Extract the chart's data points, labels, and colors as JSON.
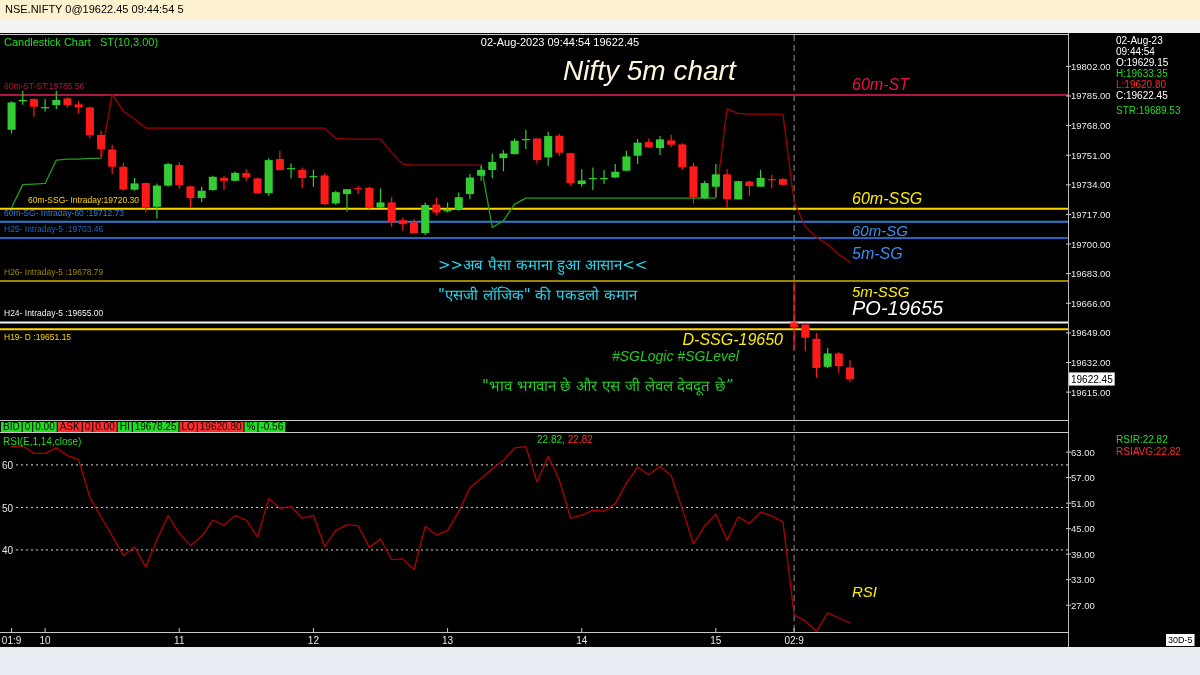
{
  "chart_data": [
    {
      "type": "candlestick",
      "title": "Nifty 5m chart",
      "categories": [
        null,
        null,
        null,
        null,
        null,
        null,
        null,
        null,
        null,
        null,
        null,
        null,
        null,
        null,
        null,
        null,
        null,
        null,
        null,
        null,
        null,
        null,
        null,
        null,
        null,
        null,
        null,
        null,
        null,
        null,
        null,
        null,
        null,
        null,
        null,
        null,
        null,
        null,
        null,
        null,
        null,
        null,
        null,
        null,
        null,
        null,
        null,
        null,
        null,
        null,
        null,
        null,
        null,
        null,
        null,
        null,
        null,
        null,
        null,
        null,
        null,
        null,
        null,
        null,
        null,
        null,
        null,
        null,
        null,
        null,
        null,
        null,
        null,
        null,
        null,
        null,
        null,
        null,
        null,
        null,
        null,
        null,
        null,
        null,
        null,
        null,
        null,
        null,
        null,
        null,
        null,
        null,
        null,
        null,
        null
      ],
      "ohlc": [
        [
          19765.6,
          19781.9,
          19763.5,
          19781.3
        ],
        [
          19781.9,
          19788.0,
          19780.0,
          19782.7
        ],
        [
          19783.2,
          19783.5,
          19773.1,
          19778.8
        ],
        [
          19778.3,
          19783.2,
          19776.0,
          19778.6
        ],
        [
          19779.8,
          19788.0,
          19777.5,
          19782.7
        ],
        [
          19783.6,
          19784.2,
          19778.4,
          19779.8
        ],
        [
          19780.2,
          19782.3,
          19775.0,
          19778.4
        ],
        [
          19778.4,
          19778.8,
          19760.6,
          19762.6
        ],
        [
          19762.6,
          19765.0,
          19749.7,
          19754.5
        ],
        [
          19754.3,
          19757.0,
          19740.2,
          19744.4
        ],
        [
          19744.4,
          19746.5,
          19730.6,
          19731.3
        ],
        [
          19731.2,
          19737.9,
          19730.6,
          19734.8
        ],
        [
          19735.0,
          19735.4,
          19718.1,
          19721.0
        ],
        [
          19721.4,
          19734.8,
          19714.7,
          19733.6
        ],
        [
          19733.5,
          19746.7,
          19732.9,
          19745.9
        ],
        [
          19745.3,
          19746.9,
          19731.7,
          19733.8
        ],
        [
          19733.1,
          19733.5,
          19721.0,
          19726.4
        ],
        [
          19726.4,
          19732.9,
          19724.1,
          19730.6
        ],
        [
          19731.0,
          19739.2,
          19730.6,
          19738.6
        ],
        [
          19737.9,
          19739.2,
          19731.0,
          19736.3
        ],
        [
          19736.3,
          19741.7,
          19735.9,
          19740.9
        ],
        [
          19740.7,
          19743.0,
          19736.3,
          19738.2
        ],
        [
          19737.7,
          19738.2,
          19728.7,
          19729.2
        ],
        [
          19729.2,
          19749.2,
          19727.7,
          19748.2
        ],
        [
          19748.8,
          19753.6,
          19742.1,
          19742.5
        ],
        [
          19743.2,
          19746.3,
          19737.7,
          19743.6
        ],
        [
          19742.6,
          19744.0,
          19732.1,
          19737.9
        ],
        [
          19738.6,
          19742.8,
          19732.9,
          19739.0
        ],
        [
          19739.4,
          19740.7,
          19722.5,
          19722.9
        ],
        [
          19723.3,
          19730.6,
          19722.5,
          19729.8
        ],
        [
          19728.7,
          19731.5,
          19718.7,
          19731.5
        ],
        [
          19732.1,
          19733.3,
          19728.7,
          19731.7
        ],
        [
          19732.3,
          19733.1,
          19720.1,
          19720.8
        ],
        [
          19721.0,
          19731.9,
          19720.6,
          19723.9
        ],
        [
          19723.9,
          19727.2,
          19709.9,
          19712.4
        ],
        [
          19713.7,
          19715.3,
          19707.6,
          19711.4
        ],
        [
          19712.4,
          19714.3,
          19705.9,
          19706.3
        ],
        [
          19706.3,
          19723.9,
          19705.1,
          19722.4
        ],
        [
          19722.7,
          19726.6,
          19716.6,
          19718.1
        ],
        [
          19719.1,
          19723.9,
          19718.1,
          19719.5
        ],
        [
          19719.7,
          19729.6,
          19719.1,
          19726.9
        ],
        [
          19728.7,
          19740.2,
          19725.8,
          19738.2
        ],
        [
          19739.2,
          19744.9,
          19736.3,
          19742.5
        ],
        [
          19742.5,
          19752.0,
          19737.7,
          19747.1
        ],
        [
          19749.3,
          19753.9,
          19741.7,
          19752.0
        ],
        [
          19751.6,
          19760.6,
          19751.6,
          19759.3
        ],
        [
          19759.9,
          19765.6,
          19754.5,
          19760.3
        ],
        [
          19760.6,
          19760.6,
          19746.3,
          19748.2
        ],
        [
          19749.7,
          19764.5,
          19744.9,
          19762.0
        ],
        [
          19762.2,
          19763.1,
          19750.7,
          19752.4
        ],
        [
          19752.2,
          19752.4,
          19733.5,
          19735.0
        ],
        [
          19734.4,
          19743.0,
          19732.9,
          19736.5
        ],
        [
          19737.5,
          19744.0,
          19731.0,
          19737.9
        ],
        [
          19737.5,
          19742.5,
          19734.4,
          19737.9
        ],
        [
          19738.2,
          19745.9,
          19737.7,
          19741.5
        ],
        [
          19742.1,
          19753.6,
          19741.7,
          19750.3
        ],
        [
          19750.7,
          19760.3,
          19745.9,
          19758.2
        ],
        [
          19758.5,
          19760.6,
          19755.1,
          19755.5
        ],
        [
          19755.1,
          19762.0,
          19751.1,
          19760.1
        ],
        [
          19759.5,
          19762.8,
          19755.5,
          19757.0
        ],
        [
          19757.2,
          19757.8,
          19742.6,
          19744.0
        ],
        [
          19744.6,
          19746.5,
          19723.3,
          19726.8
        ],
        [
          19726.4,
          19736.3,
          19725.8,
          19735.0
        ],
        [
          19732.9,
          19745.9,
          19726.8,
          19740.0
        ],
        [
          19740.0,
          19743.0,
          19721.0,
          19725.8
        ],
        [
          19725.6,
          19736.3,
          19725.6,
          19736.1
        ],
        [
          19735.9,
          19736.3,
          19727.7,
          19733.3
        ],
        [
          19732.9,
          19742.6,
          19732.9,
          19738.0
        ],
        [
          19737.3,
          19739.6,
          19732.1,
          19736.9
        ],
        [
          19737.3,
          19737.9,
          19733.8,
          19734.0
        ],
        [
          19655.0,
          19678.25,
          19639.5,
          19652.1
        ],
        [
          19653.8,
          19654.8,
          19638.5,
          19646.2
        ],
        [
          19645.6,
          19649.0,
          19623.2,
          19628.9
        ],
        [
          19629.5,
          19640.4,
          19628.9,
          19637.2
        ],
        [
          19637.2,
          19637.9,
          19626.1,
          19629.9
        ],
        [
          19629.15,
          19633.35,
          19620.8,
          19622.45
        ],
        null,
        null,
        null,
        null,
        null,
        null,
        null,
        null,
        null,
        null,
        null,
        null,
        null,
        null,
        null,
        null,
        null,
        null,
        null
      ],
      "colors": [
        "#33cc33",
        "#33cc33",
        "#ff1a1a",
        "#33cc33",
        "#33cc33",
        "#ff1a1a",
        "#ff1a1a",
        "#ff1a1a",
        "#ff1a1a",
        "#ff1a1a",
        "#ff1a1a",
        "#33cc33",
        "#ff1a1a",
        "#33cc33",
        "#33cc33",
        "#ff1a1a",
        "#ff1a1a",
        "#33cc33",
        "#33cc33",
        "#ff1a1a",
        "#33cc33",
        "#ff1a1a",
        "#ff1a1a",
        "#33cc33",
        "#ff1a1a",
        "#33cc33",
        "#ff1a1a",
        "#33cc33",
        "#ff1a1a",
        "#33cc33",
        "#33cc33",
        "#ff1a1a",
        "#ff1a1a",
        "#33cc33",
        "#ff1a1a",
        "#ff1a1a",
        "#ff1a1a",
        "#33cc33",
        "#ff1a1a",
        "#33cc33",
        "#33cc33",
        "#33cc33",
        "#33cc33",
        "#33cc33",
        "#33cc33",
        "#33cc33",
        "#33cc33",
        "#ff1a1a",
        "#33cc33",
        "#ff1a1a",
        "#ff1a1a",
        "#33cc33",
        "#33cc33",
        "#33cc33",
        "#33cc33",
        "#33cc33",
        "#33cc33",
        "#ff1a1a",
        "#33cc33",
        "#ff1a1a",
        "#ff1a1a",
        "#ff1a1a",
        "#33cc33",
        "#33cc33",
        "#ff1a1a",
        "#33cc33",
        "#ff1a1a",
        "#33cc33",
        "#ff1a1a",
        "#ff1a1a",
        "#ff1a1a",
        "#ff1a1a",
        "#ff1a1a",
        "#33cc33",
        "#ff1a1a",
        "#ff1a1a",
        null,
        null,
        null,
        null,
        null,
        null,
        null,
        null,
        null,
        null,
        null,
        null,
        null,
        null,
        null,
        null,
        null,
        null,
        null
      ],
      "series": [
        {
          "type": "line",
          "color": "#1f9e1f",
          "values": [
            19721.0,
            19734.1,
            19734.4,
            19734.8,
            19748.2,
            19748.8,
            19748.8,
            19749.2,
            19749.2,
            null,
            null,
            null,
            null,
            null,
            null,
            null,
            null,
            null,
            null,
            null,
            null,
            null,
            null,
            null,
            null,
            null,
            null,
            null,
            null,
            null,
            null,
            null,
            null,
            null,
            null,
            null,
            null,
            null,
            null,
            null,
            null,
            null,
            19745.3,
            19709.5,
            19713.4,
            19722.9,
            19726.4,
            19726.4,
            19726.4,
            19726.4,
            19726.4,
            19726.4,
            19726.4,
            19726.4,
            19726.4,
            19726.4,
            19726.4,
            19726.4,
            19726.4,
            19726.4,
            19726.4,
            19726.4,
            19726.4,
            19726.4,
            null,
            null,
            null,
            null,
            null,
            null,
            null,
            null,
            null,
            null,
            null,
            null,
            null,
            null,
            null,
            null,
            null,
            null,
            null,
            null,
            null,
            null,
            null,
            null,
            null,
            null,
            null,
            null,
            null,
            null,
            null
          ]
        },
        {
          "type": "line",
          "color": "#a30000",
          "values": [
            null,
            null,
            null,
            null,
            null,
            null,
            null,
            null,
            19749.2,
            19786.1,
            19776.2,
            19771.8,
            19766.6,
            19766.6,
            19766.6,
            19766.6,
            19766.6,
            19766.6,
            19766.6,
            19766.6,
            19766.6,
            19766.6,
            19766.6,
            19766.6,
            19766.6,
            19766.6,
            19766.6,
            19766.6,
            19766.6,
            19760.6,
            19760.2,
            19760.2,
            19760.2,
            19760.2,
            19752.5,
            19745.9,
            19745.3,
            19745.3,
            19745.3,
            19745.3,
            19745.3,
            19745.3,
            19745.3,
            null,
            null,
            null,
            null,
            null,
            null,
            null,
            null,
            null,
            null,
            null,
            null,
            null,
            null,
            null,
            null,
            null,
            null,
            null,
            null,
            19726.4,
            19777.5,
            19775.0,
            19774.6,
            19774.6,
            19774.6,
            19774.6,
            19724.0,
            19710.1,
            19703.8,
            19699.8,
            19694.0,
            19689.53,
            null,
            null,
            null,
            null,
            null,
            null,
            null,
            null,
            null,
            null,
            null,
            null,
            null,
            null,
            null,
            null,
            null,
            null,
            null
          ]
        }
      ],
      "ylim": [
        19599,
        19820
      ],
      "yticks": [
        {
          "value": 19615,
          "label": "19615.00"
        },
        {
          "value": 19632,
          "label": "19632.00"
        },
        {
          "value": 19649,
          "label": "19649.00"
        },
        {
          "value": 19666,
          "label": "19666.00"
        },
        {
          "value": 19683,
          "label": "19683.00"
        },
        {
          "value": 19700,
          "label": "19700.00"
        },
        {
          "value": 19717,
          "label": "19717.00"
        },
        {
          "value": 19734,
          "label": "19734.00"
        },
        {
          "value": 19751,
          "label": "19751.00"
        },
        {
          "value": 19768,
          "label": "19768.00"
        },
        {
          "value": 19785,
          "label": "19785.00"
        },
        {
          "value": 19802,
          "label": "19802.00"
        }
      ],
      "tick_labels": "y",
      "ref_lines": [
        {
          "axis": "y",
          "value": 19785.56,
          "label": "60m-ST-ST:19785.56",
          "color": "#b0163f",
          "line_style": "solid"
        },
        {
          "axis": "y",
          "value": 19720.3,
          "label": "60m-SSG- Intraday:19720.30",
          "color": "#ffd500",
          "line_style": "solid"
        },
        {
          "axis": "y",
          "value": 19712.73,
          "label": "60m-SG- Intraday-60 :19712.73",
          "color": "#2a7fd8",
          "line_style": "solid"
        },
        {
          "axis": "y",
          "value": 19703.46,
          "label": "H25- Intraday-5 :19703.46",
          "color": "#1e66c4",
          "line_style": "solid"
        },
        {
          "axis": "y",
          "value": 19678.79,
          "label": "H26- Intraday-5 :19678.79",
          "color": "#9a8600",
          "line_style": "solid"
        },
        {
          "axis": "y",
          "value": 19655.0,
          "label": "H24- Intraday-5 :19655.00",
          "color": "#f2f2f2",
          "line_style": "solid"
        },
        {
          "axis": "y",
          "value": 19651.15,
          "label": "H19- D :19651.15",
          "color": "#ffd500",
          "line_style": "solid"
        }
      ],
      "annotations": [
        "NSE.NIFTY 0@19622.45 09:44:54 5",
        "Candlestick Chart",
        "ST(10,3.00)",
        "02-Aug-2023 09:44:54 19622.45",
        "02-Aug-23",
        "09:44:54",
        "O:19629.15",
        "H:19633.35",
        "L:19620.80",
        "C:19622.45",
        "STR:19689.53",
        {
          "text": "60m-ST",
          "y": 19785.56
        },
        {
          "text": "60m-SSG",
          "y": 19720.3
        },
        {
          "text": "60m-SG",
          "y": 19712.73
        },
        {
          "text": "5m-SG",
          "y": 19703.46
        },
        {
          "text": "5m-SSG",
          "y": 19678.79
        },
        {
          "text": "PO-19655",
          "y": 19655.0
        },
        {
          "text": "D-SSG-19650",
          "y": 19651.15
        },
        ">>अब पैसा कमाना हुआ आसान<<",
        "\"एसजी लॉजिक\" की पकडलो कमान",
        "#SGLogic #SGLevel",
        "\"भाव भगवान छे और एस जी लेवल देवदूत छे”",
        "19622.45",
        "BID",
        "0",
        "0.00",
        "ASK",
        "0",
        "0.00",
        "HI",
        "19678.25",
        "LO",
        "19620.80",
        "%",
        "-0.56"
      ]
    },
    {
      "type": "line",
      "title": "RSI(E,1,14,close)",
      "categories": [
        "01:9",
        null,
        null,
        "10",
        null,
        null,
        null,
        null,
        null,
        null,
        null,
        null,
        null,
        null,
        null,
        "11",
        null,
        null,
        null,
        null,
        null,
        null,
        null,
        null,
        null,
        null,
        null,
        "12",
        null,
        null,
        null,
        null,
        null,
        null,
        null,
        null,
        null,
        null,
        null,
        "13",
        null,
        null,
        null,
        null,
        null,
        null,
        null,
        null,
        null,
        null,
        null,
        "14",
        null,
        null,
        null,
        null,
        null,
        null,
        null,
        null,
        null,
        null,
        null,
        "15",
        null,
        null,
        null,
        null,
        null,
        null,
        "02:9",
        null,
        null,
        null,
        null,
        null,
        null,
        null,
        null,
        null,
        null,
        null,
        null,
        null,
        null,
        null,
        null,
        null,
        null,
        null,
        null,
        null,
        null,
        null,
        null
      ],
      "series": [
        {
          "color": "#b00000",
          "values": [
            64.3,
            64.5,
            62.7,
            62.7,
            64.0,
            62.2,
            61.2,
            52.3,
            47.8,
            43.3,
            38.7,
            40.7,
            36.0,
            42.4,
            48.1,
            43.9,
            41.0,
            43.2,
            47.0,
            45.8,
            48.1,
            47.0,
            43.0,
            52.1,
            49.8,
            50.2,
            47.5,
            48.1,
            40.8,
            44.6,
            45.9,
            45.7,
            40.6,
            42.6,
            37.7,
            37.9,
            35.4,
            45.5,
            43.5,
            44.6,
            49.0,
            54.6,
            56.8,
            59.1,
            61.1,
            64.0,
            64.3,
            56.0,
            62.0,
            56.4,
            47.5,
            48.2,
            49.3,
            49.1,
            50.9,
            55.7,
            59.5,
            57.7,
            59.7,
            57.5,
            49.6,
            41.4,
            45.7,
            48.4,
            42.3,
            47.8,
            46.2,
            48.9,
            48.0,
            46.6,
            24.7,
            23.3,
            20.9,
            25.2,
            24.0,
            22.82,
            null,
            null,
            null,
            null,
            null,
            null,
            null,
            null,
            null,
            null,
            null,
            null,
            null,
            null,
            null,
            null,
            null,
            null,
            null
          ]
        }
      ],
      "ylim": [
        20.7,
        67.5
      ],
      "yticks": [
        40,
        50,
        60
      ],
      "grid": "y",
      "y2lim": [
        20.7,
        67.5
      ],
      "y2ticks": [
        {
          "value": 27,
          "label": "27.00"
        },
        {
          "value": 33,
          "label": "33.00"
        },
        {
          "value": 39,
          "label": "39.00"
        },
        {
          "value": 45,
          "label": "45.00"
        },
        {
          "value": 51,
          "label": "51.00"
        },
        {
          "value": 57,
          "label": "57.00"
        },
        {
          "value": 63,
          "label": "63.00"
        }
      ],
      "ref_lines": [
        {
          "axis": "x",
          "value": "02:9",
          "color": "#7a7a7a",
          "line_style": "dashed"
        }
      ],
      "annotations": [
        "22.82,",
        "22.82",
        "RSIR:22.82",
        "RSIAVG:22.82",
        "RSI",
        "30D-5"
      ]
    }
  ]
}
